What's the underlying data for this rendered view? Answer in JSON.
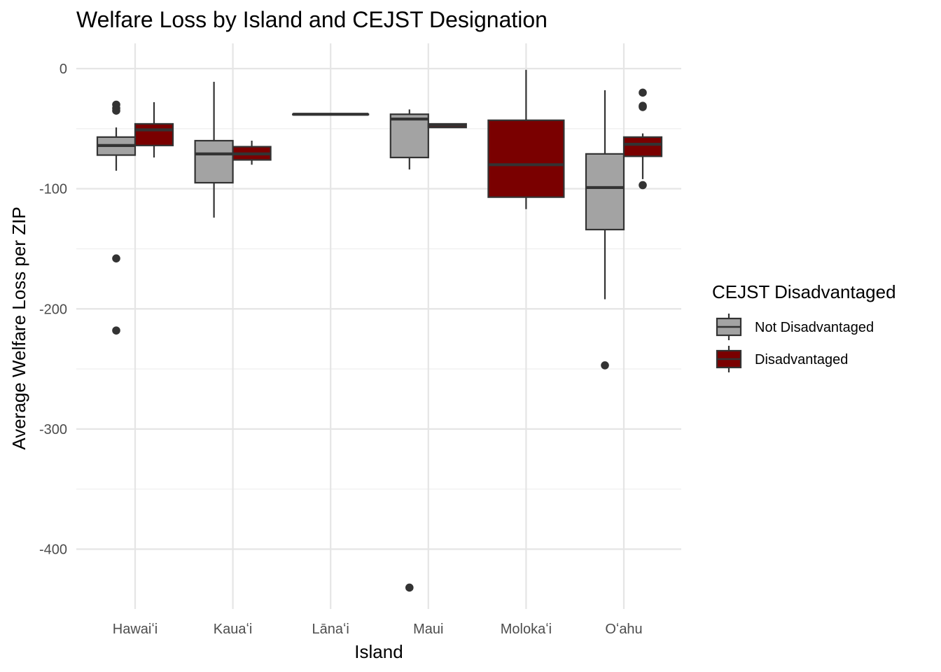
{
  "chart_data": {
    "type": "boxplot",
    "title": "Welfare Loss by Island and CEJST Designation",
    "xlabel": "Island",
    "ylabel": "Average Welfare Loss per ZIP",
    "ylim": [
      -450,
      21
    ],
    "yticks": [
      0,
      -100,
      -200,
      -300,
      -400
    ],
    "categories": [
      "Hawaiʻi",
      "Kauaʻi",
      "Lānaʻi",
      "Maui",
      "Molokaʻi",
      "Oʻahu"
    ],
    "legend": {
      "title": "CEJST Disadvantaged",
      "position": "right"
    },
    "grid": true,
    "series": [
      {
        "name": "Not Disadvantaged",
        "color": "#a3a3a3",
        "boxes": [
          {
            "category": "Hawaiʻi",
            "lower_whisker": -85,
            "q1": -72,
            "median": -64,
            "q3": -57,
            "upper_whisker": -49,
            "outliers": [
              -30,
              -33,
              -35,
              -158,
              -218
            ]
          },
          {
            "category": "Kauaʻi",
            "lower_whisker": -124,
            "q1": -95,
            "median": -71,
            "q3": -60,
            "upper_whisker": -11,
            "outliers": []
          },
          null,
          {
            "category": "Maui",
            "lower_whisker": -84,
            "q1": -74,
            "median": -42,
            "q3": -38,
            "upper_whisker": -34,
            "outliers": [
              -432
            ]
          },
          null,
          {
            "category": "Oʻahu",
            "lower_whisker": -192,
            "q1": -134,
            "median": -99,
            "q3": -71,
            "upper_whisker": -18,
            "outliers": [
              -247
            ]
          }
        ]
      },
      {
        "name": "Disadvantaged",
        "color": "#7a0000",
        "boxes": [
          {
            "category": "Hawaiʻi",
            "lower_whisker": -74,
            "q1": -64,
            "median": -51,
            "q3": -46,
            "upper_whisker": -28,
            "outliers": []
          },
          {
            "category": "Kauaʻi",
            "lower_whisker": -80,
            "q1": -76,
            "median": -71,
            "q3": -65,
            "upper_whisker": -60,
            "outliers": []
          },
          {
            "category": "Lānaʻi",
            "lower_whisker": -38,
            "q1": -38,
            "median": -38,
            "q3": -38,
            "upper_whisker": -38,
            "outliers": []
          },
          {
            "category": "Maui",
            "lower_whisker": -49,
            "q1": -49,
            "median": -47,
            "q3": -46,
            "upper_whisker": -46,
            "outliers": []
          },
          {
            "category": "Molokaʻi",
            "lower_whisker": -117,
            "q1": -107,
            "median": -80,
            "q3": -43,
            "upper_whisker": -1,
            "outliers": []
          },
          {
            "category": "Oʻahu",
            "lower_whisker": -92,
            "q1": -73,
            "median": -63,
            "q3": -57,
            "upper_whisker": -54,
            "outliers": [
              -20,
              -31,
              -32,
              -97
            ]
          }
        ]
      }
    ]
  }
}
